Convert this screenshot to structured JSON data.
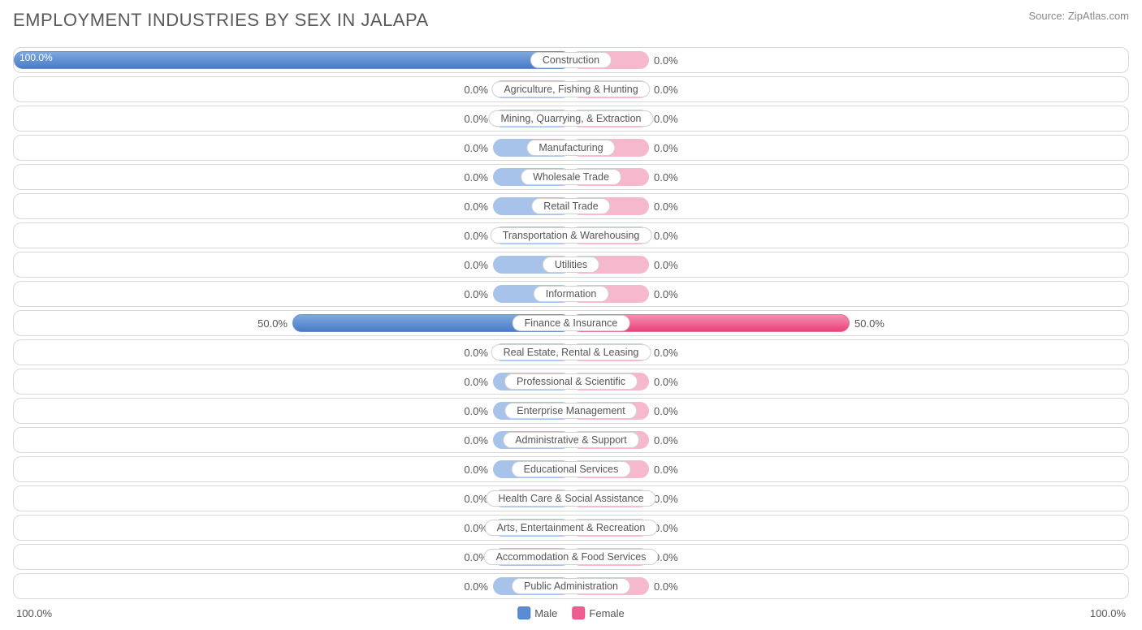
{
  "title": "EMPLOYMENT INDUSTRIES BY SEX IN JALAPA",
  "source": "Source: ZipAtlas.com",
  "chart": {
    "type": "diverging-bar",
    "axis_max_pct": 100.0,
    "min_bar_pct": 14,
    "colors": {
      "male_top": "#7da9de",
      "male_bottom": "#4a7bc8",
      "male_min": "#a8c3ea",
      "female_top": "#f48fb1",
      "female_bottom": "#ec417a",
      "female_min": "#f6b8cd",
      "row_border": "#d8d8d8",
      "text": "#555555",
      "title_text": "#5a5a5a",
      "background": "#ffffff"
    },
    "font_sizes": {
      "title": 22,
      "label": 13,
      "category": 12.5
    },
    "rows": [
      {
        "category": "Construction",
        "male": 100.0,
        "female": 0.0
      },
      {
        "category": "Agriculture, Fishing & Hunting",
        "male": 0.0,
        "female": 0.0
      },
      {
        "category": "Mining, Quarrying, & Extraction",
        "male": 0.0,
        "female": 0.0
      },
      {
        "category": "Manufacturing",
        "male": 0.0,
        "female": 0.0
      },
      {
        "category": "Wholesale Trade",
        "male": 0.0,
        "female": 0.0
      },
      {
        "category": "Retail Trade",
        "male": 0.0,
        "female": 0.0
      },
      {
        "category": "Transportation & Warehousing",
        "male": 0.0,
        "female": 0.0
      },
      {
        "category": "Utilities",
        "male": 0.0,
        "female": 0.0
      },
      {
        "category": "Information",
        "male": 0.0,
        "female": 0.0
      },
      {
        "category": "Finance & Insurance",
        "male": 50.0,
        "female": 50.0
      },
      {
        "category": "Real Estate, Rental & Leasing",
        "male": 0.0,
        "female": 0.0
      },
      {
        "category": "Professional & Scientific",
        "male": 0.0,
        "female": 0.0
      },
      {
        "category": "Enterprise Management",
        "male": 0.0,
        "female": 0.0
      },
      {
        "category": "Administrative & Support",
        "male": 0.0,
        "female": 0.0
      },
      {
        "category": "Educational Services",
        "male": 0.0,
        "female": 0.0
      },
      {
        "category": "Health Care & Social Assistance",
        "male": 0.0,
        "female": 0.0
      },
      {
        "category": "Arts, Entertainment & Recreation",
        "male": 0.0,
        "female": 0.0
      },
      {
        "category": "Accommodation & Food Services",
        "male": 0.0,
        "female": 0.0
      },
      {
        "category": "Public Administration",
        "male": 0.0,
        "female": 0.0
      }
    ]
  },
  "legend": {
    "male": "Male",
    "female": "Female"
  },
  "axis": {
    "left": "100.0%",
    "right": "100.0%"
  }
}
